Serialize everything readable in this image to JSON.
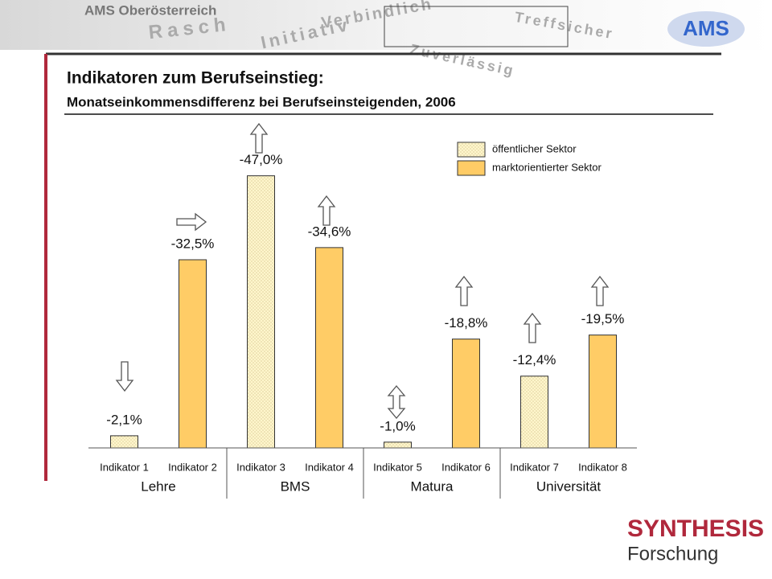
{
  "header": {
    "org": "AMS Oberösterreich",
    "slogans": [
      "Rasch",
      "Initiativ",
      "Verbindlich",
      "Zuverlässig",
      "Treffsicher"
    ],
    "logo": "AMS"
  },
  "footer": {
    "brand": "SYNTHESIS",
    "sub": "Forschung"
  },
  "chart_data": {
    "type": "bar",
    "title": "Indikatoren zum Berufseinstieg:",
    "subtitle": "Monatseinkommensdifferenz bei Berufseinsteigenden, 2006",
    "categories": [
      "Indikator 1",
      "Indikator 2",
      "Indikator 3",
      "Indikator 4",
      "Indikator 5",
      "Indikator 6",
      "Indikator 7",
      "Indikator 8"
    ],
    "groups": [
      {
        "name": "Lehre",
        "span": 2
      },
      {
        "name": "BMS",
        "span": 2
      },
      {
        "name": "Matura",
        "span": 2
      },
      {
        "name": "Universität",
        "span": 2
      }
    ],
    "series": [
      {
        "name": "öffentlicher Sektor",
        "color": "#fff6cc",
        "pattern": "dotted",
        "values": [
          -2.1,
          null,
          -47.0,
          null,
          -1.0,
          null,
          -12.4,
          null
        ],
        "value_labels": [
          "-2,1%",
          null,
          "-47,0%",
          null,
          "-1,0%",
          null,
          "-12,4%",
          null
        ]
      },
      {
        "name": "marktorientierter Sektor",
        "color": "#ffcc66",
        "values": [
          null,
          -32.5,
          null,
          -34.6,
          null,
          -18.8,
          null,
          -19.5
        ],
        "value_labels": [
          null,
          "-32,5%",
          null,
          "-34,6%",
          null,
          "-18,8%",
          null,
          "-19,5%"
        ]
      }
    ],
    "ylim": [
      0,
      -50
    ],
    "legend": "upper right"
  }
}
